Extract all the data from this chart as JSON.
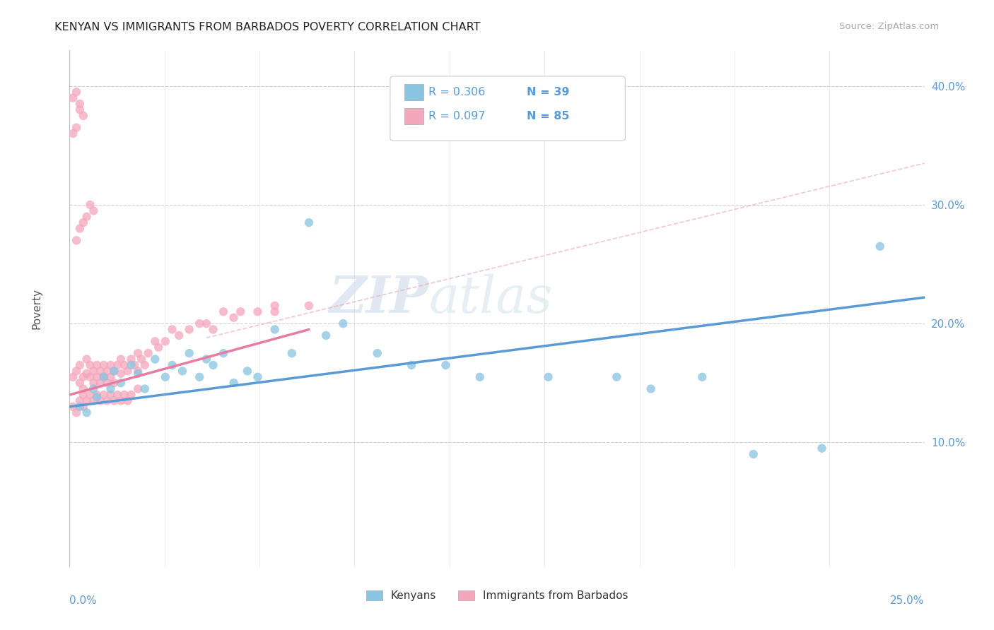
{
  "title": "KENYAN VS IMMIGRANTS FROM BARBADOS POVERTY CORRELATION CHART",
  "source": "Source: ZipAtlas.com",
  "ylabel": "Poverty",
  "right_yticks": [
    "10.0%",
    "20.0%",
    "30.0%",
    "40.0%"
  ],
  "right_ytick_vals": [
    0.1,
    0.2,
    0.3,
    0.4
  ],
  "kenyan_color": "#89c4e1",
  "barbados_color": "#f4a6bb",
  "kenyan_line_color": "#5b9bd5",
  "barbados_line_color": "#e87ca0",
  "watermark_zip": "ZIP",
  "watermark_atlas": "atlas",
  "xmin": 0.0,
  "xmax": 0.25,
  "ymin": -0.005,
  "ymax": 0.43,
  "kenyan_x": [
    0.003,
    0.005,
    0.007,
    0.008,
    0.01,
    0.012,
    0.013,
    0.015,
    0.018,
    0.02,
    0.022,
    0.025,
    0.028,
    0.03,
    0.033,
    0.035,
    0.038,
    0.04,
    0.042,
    0.045,
    0.048,
    0.052,
    0.055,
    0.06,
    0.065,
    0.07,
    0.075,
    0.08,
    0.09,
    0.1,
    0.11,
    0.12,
    0.14,
    0.16,
    0.17,
    0.185,
    0.2,
    0.22,
    0.237
  ],
  "kenyan_y": [
    0.13,
    0.125,
    0.145,
    0.138,
    0.155,
    0.145,
    0.16,
    0.15,
    0.165,
    0.158,
    0.145,
    0.17,
    0.155,
    0.165,
    0.16,
    0.175,
    0.155,
    0.17,
    0.165,
    0.175,
    0.15,
    0.16,
    0.155,
    0.195,
    0.175,
    0.285,
    0.19,
    0.2,
    0.175,
    0.165,
    0.165,
    0.155,
    0.155,
    0.155,
    0.145,
    0.155,
    0.09,
    0.095,
    0.265
  ],
  "barbados_x": [
    0.001,
    0.002,
    0.003,
    0.003,
    0.004,
    0.004,
    0.005,
    0.005,
    0.006,
    0.006,
    0.007,
    0.007,
    0.008,
    0.008,
    0.009,
    0.009,
    0.01,
    0.01,
    0.011,
    0.011,
    0.012,
    0.012,
    0.013,
    0.013,
    0.014,
    0.015,
    0.015,
    0.016,
    0.017,
    0.018,
    0.019,
    0.02,
    0.02,
    0.021,
    0.022,
    0.023,
    0.025,
    0.026,
    0.028,
    0.03,
    0.032,
    0.035,
    0.038,
    0.04,
    0.042,
    0.045,
    0.048,
    0.05,
    0.055,
    0.06,
    0.001,
    0.002,
    0.003,
    0.004,
    0.004,
    0.005,
    0.006,
    0.007,
    0.008,
    0.009,
    0.01,
    0.011,
    0.012,
    0.013,
    0.014,
    0.015,
    0.016,
    0.017,
    0.018,
    0.02,
    0.002,
    0.003,
    0.004,
    0.005,
    0.006,
    0.007,
    0.001,
    0.002,
    0.003,
    0.001,
    0.002,
    0.003,
    0.004,
    0.06,
    0.07
  ],
  "barbados_y": [
    0.155,
    0.16,
    0.165,
    0.15,
    0.155,
    0.145,
    0.17,
    0.158,
    0.165,
    0.155,
    0.16,
    0.15,
    0.165,
    0.155,
    0.16,
    0.15,
    0.165,
    0.155,
    0.16,
    0.15,
    0.165,
    0.155,
    0.16,
    0.15,
    0.165,
    0.17,
    0.158,
    0.165,
    0.16,
    0.17,
    0.165,
    0.175,
    0.16,
    0.17,
    0.165,
    0.175,
    0.185,
    0.18,
    0.185,
    0.195,
    0.19,
    0.195,
    0.2,
    0.2,
    0.195,
    0.21,
    0.205,
    0.21,
    0.21,
    0.215,
    0.13,
    0.125,
    0.135,
    0.13,
    0.14,
    0.135,
    0.14,
    0.135,
    0.14,
    0.135,
    0.14,
    0.135,
    0.14,
    0.135,
    0.14,
    0.135,
    0.14,
    0.135,
    0.14,
    0.145,
    0.27,
    0.28,
    0.285,
    0.29,
    0.3,
    0.295,
    0.36,
    0.365,
    0.385,
    0.39,
    0.395,
    0.38,
    0.375,
    0.21,
    0.215
  ]
}
